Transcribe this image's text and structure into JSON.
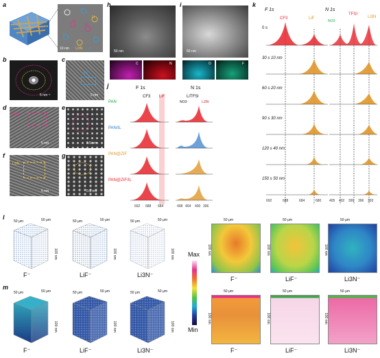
{
  "panel_labels": [
    "a",
    "b",
    "c",
    "d",
    "e",
    "f",
    "g",
    "h",
    "i",
    "j",
    "k",
    "l",
    "m"
  ],
  "a": {
    "tags": [
      "PI",
      "Li",
      "Li",
      "PI",
      "Li",
      "Li",
      "Li3N",
      "Li"
    ],
    "scale": "10 nm"
  },
  "b": {
    "scale": "5 nm⁻¹"
  },
  "c": {
    "tag": "LiF",
    "scale": "5 nm"
  },
  "d": {
    "tag": "PAN",
    "scale": "5 nm"
  },
  "e": {
    "scale": "0.5 nm"
  },
  "f": {
    "tag": "Li3N",
    "scale": "5 nm"
  },
  "g": {
    "scale": "0.5 nm"
  },
  "h": {
    "scale": "50 nm",
    "maps": [
      "C",
      "N"
    ],
    "colors": [
      "#c21fb0",
      "#cc1020"
    ]
  },
  "i": {
    "scale": "50 nm",
    "maps": [
      "O",
      "F"
    ],
    "colors": [
      "#19b6c9",
      "#16a07a"
    ]
  },
  "j": {
    "col1_title": "F 1s",
    "col2_title": "N 1s",
    "labels": {
      "cf3": "CF3",
      "lif": "LiF",
      "no3": "NO3⁻",
      "litfsi": "LiTFSI",
      "li3n": "Li3N"
    },
    "samples": [
      {
        "name": "PAN",
        "color": "#1aa64a"
      },
      {
        "name": "PAN/IL",
        "color": "#2f79c6"
      },
      {
        "name": "PAN@ZIF",
        "color": "#e0962a"
      },
      {
        "name": "PAN@ZIF/IL",
        "color": "#e8242c"
      }
    ],
    "f_ticks": [
      "692",
      "688",
      "684"
    ],
    "n_ticks": [
      "408",
      "404",
      "400",
      "396"
    ]
  },
  "k": {
    "col1_title": "F 1s",
    "col2_title": "N 1s",
    "labels": {
      "cf3": "CF3",
      "lif": "LiF",
      "no3": "NO3⁻",
      "tfsi": "TFSI⁻",
      "li3n": "Li3N"
    },
    "rows": [
      "0 s",
      "30 s 10 nm",
      "60 s 20 nm",
      "90 s 30 nm",
      "120 s 40 nm",
      "150 s 50 nm"
    ],
    "f_ticks": [
      "692",
      "688",
      "684",
      "680"
    ],
    "n_ticks": [
      "405",
      "402",
      "399",
      "396",
      "393"
    ]
  },
  "l": {
    "ions": [
      "F⁻",
      "LiF⁻",
      "Li3N⁻"
    ],
    "dims": [
      "50 μm",
      "50 μm",
      "100 nm"
    ]
  },
  "m": {
    "ions": [
      "F⁻",
      "LiF⁻",
      "Li3N⁻"
    ],
    "dims": [
      "50 μm",
      "50 μm",
      "100 nm"
    ]
  },
  "colorbar": {
    "max": "Max",
    "min": "Min"
  },
  "maps": {
    "ions_top": [
      "F⁻",
      "LiF⁻",
      "Li3N⁻"
    ],
    "ions_bottom": [
      "F⁻",
      "LiF⁻",
      "Li3N⁻"
    ],
    "scale": "50 μm",
    "depth": "100 nm"
  }
}
